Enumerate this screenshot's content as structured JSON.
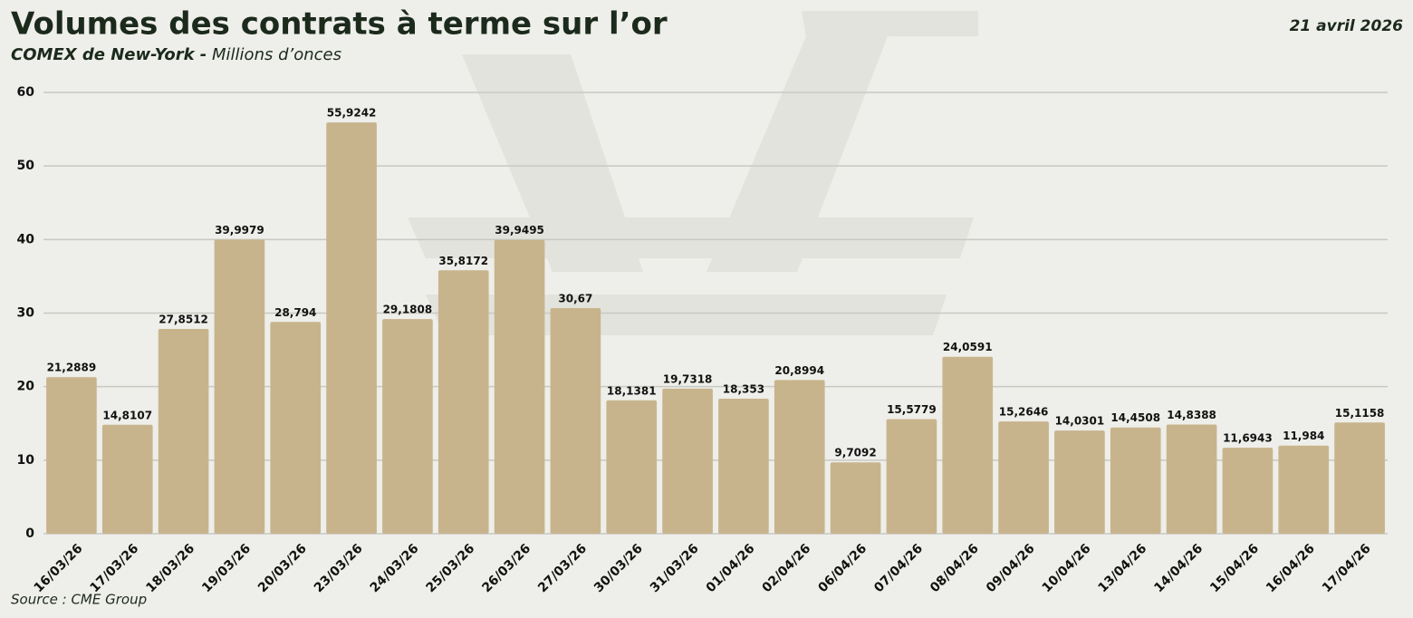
{
  "chart_data": {
    "type": "bar",
    "title": "Volumes des contrats à terme sur l’or",
    "subtitle": "COMEX de New-York -",
    "unit": "Millions d’onces",
    "date": "21 avril 2026",
    "source": "Source : CME Group",
    "categories": [
      "16/03/26",
      "17/03/26",
      "18/03/26",
      "19/03/26",
      "20/03/26",
      "23/03/26",
      "24/03/26",
      "25/03/26",
      "26/03/26",
      "27/03/26",
      "30/03/26",
      "31/03/26",
      "01/04/26",
      "02/04/26",
      "06/04/26",
      "07/04/26",
      "08/04/26",
      "09/04/26",
      "10/04/26",
      "13/04/26",
      "14/04/26",
      "15/04/26",
      "16/04/26",
      "17/04/26"
    ],
    "values": [
      21.2889,
      14.8107,
      27.8512,
      39.9979,
      28.794,
      55.9242,
      29.1808,
      35.8172,
      39.9495,
      30.67,
      18.1381,
      19.7318,
      18.353,
      20.8994,
      9.7092,
      15.5779,
      24.0591,
      15.2646,
      14.0301,
      14.4508,
      14.8388,
      11.6943,
      11.984,
      15.1158
    ],
    "value_labels": [
      "21,2889",
      "14,8107",
      "27,8512",
      "39,9979",
      "28,794",
      "55,9242",
      "29,1808",
      "35,8172",
      "39,9495",
      "30,67",
      "18,1381",
      "19,7318",
      "18,353",
      "20,8994",
      "9,7092",
      "15,5779",
      "24,0591",
      "15,2646",
      "14,0301",
      "14,4508",
      "14,8388",
      "11,6943",
      "11,984",
      "15,1158"
    ],
    "color": "#c8b48c",
    "ylim": [
      0,
      60
    ],
    "yticks": [
      0,
      10,
      20,
      30,
      40,
      50,
      60
    ],
    "grid": true
  }
}
